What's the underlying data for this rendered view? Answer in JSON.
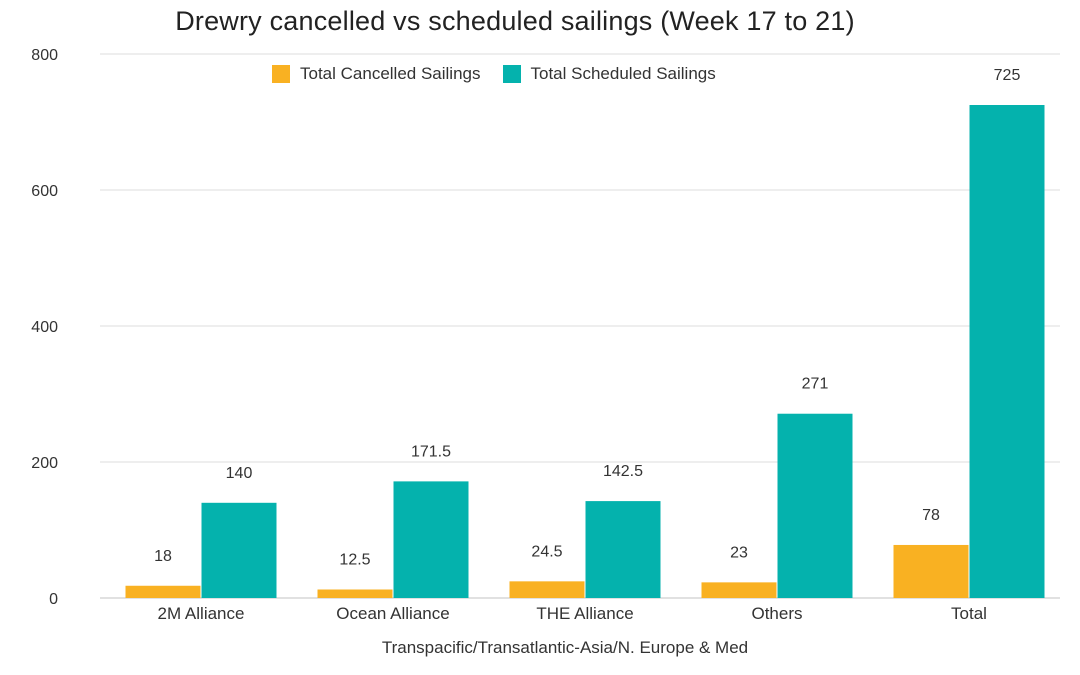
{
  "chart_data": {
    "type": "bar",
    "title": "Drewry cancelled vs scheduled sailings (Week 17 to 21)",
    "xlabel": "Transpacific/Transatlantic-Asia/N. Europe & Med",
    "ylabel": "",
    "categories": [
      "2M Alliance",
      "Ocean Alliance",
      "THE Alliance",
      "Others",
      "Total"
    ],
    "series": [
      {
        "name": "Total Cancelled Sailings",
        "color": "#F9B122",
        "values": [
          18,
          12.5,
          24.5,
          23,
          78
        ],
        "labels": [
          "18",
          "12.5",
          "24.5",
          "23",
          "78"
        ]
      },
      {
        "name": "Total Scheduled Sailings",
        "color": "#04B2AD",
        "values": [
          140,
          171.5,
          142.5,
          271,
          725
        ],
        "labels": [
          "140",
          "171.5",
          "142.5",
          "271",
          "725"
        ]
      }
    ],
    "ylim": [
      0,
      800
    ],
    "yticks": [
      0,
      200,
      400,
      600,
      800
    ],
    "grid": true,
    "legend_position": "top-center"
  }
}
